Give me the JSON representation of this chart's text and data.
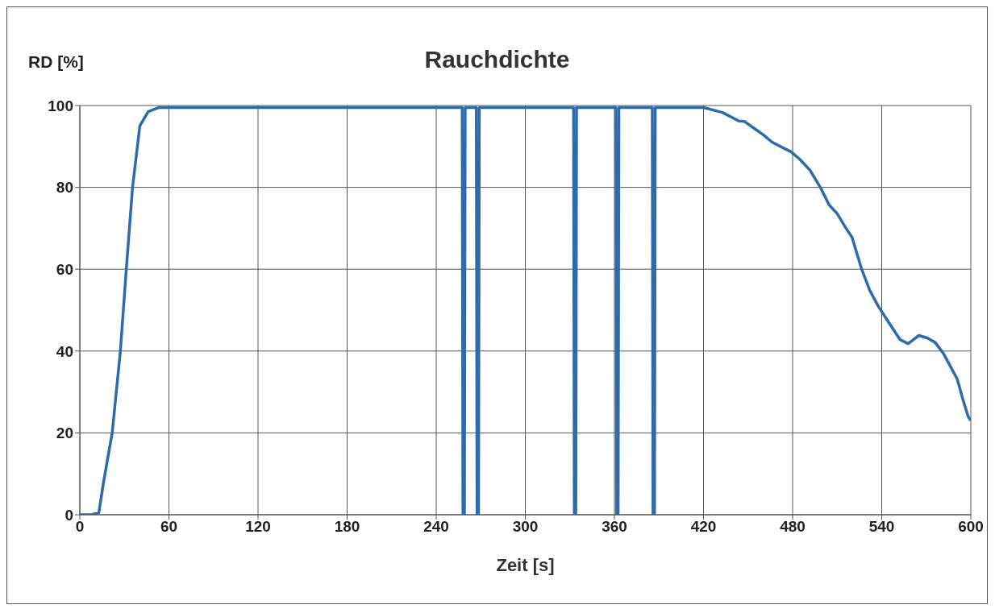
{
  "chart_data": {
    "type": "line",
    "title": "Rauchdichte",
    "xlabel": "Zeit [s]",
    "ylabel": "RD [%]",
    "x": [
      0,
      8,
      12.8,
      16,
      21.8,
      27.3,
      31.3,
      35.5,
      40.4,
      46,
      53,
      100,
      200,
      257.5,
      258,
      259,
      259.5,
      267,
      267.5,
      268.5,
      269,
      332.5,
      333,
      334,
      334.5,
      361,
      361.5,
      362.5,
      363,
      385.5,
      386,
      387,
      387.5,
      420,
      432.8,
      443.8,
      447.7,
      455,
      460.5,
      466,
      473.4,
      478.9,
      484.4,
      491.7,
      499,
      504.6,
      510,
      515.6,
      520,
      526.6,
      532,
      537.6,
      544.9,
      552.3,
      557.8,
      565,
      570.6,
      576,
      581.6,
      590.8,
      594.5,
      598.2,
      600
    ],
    "series": [
      {
        "color": "#2e6bad",
        "values": [
          0,
          0,
          0.5,
          8,
          20,
          40,
          60,
          80,
          95,
          98.5,
          99.5,
          99.5,
          99.5,
          99.5,
          0,
          0,
          99.5,
          99.5,
          0,
          0,
          99.5,
          99.5,
          0,
          0,
          99.5,
          99.5,
          0,
          0,
          99.5,
          99.5,
          0,
          0,
          99.5,
          99.5,
          98.3,
          96.2,
          96.1,
          94.2,
          92.8,
          91.1,
          89.7,
          88.7,
          87,
          84.2,
          79.8,
          75.7,
          73.6,
          70.2,
          67.8,
          59.9,
          54.8,
          51,
          46.9,
          42.8,
          41.8,
          43.8,
          43.2,
          42.1,
          39.4,
          33.2,
          28.4,
          24,
          23
        ]
      }
    ],
    "xlim": [
      0,
      600
    ],
    "xticks": [
      0,
      60,
      120,
      180,
      240,
      300,
      360,
      420,
      480,
      540,
      600
    ],
    "ylim": [
      0,
      100
    ],
    "yticks": [
      0,
      20,
      40,
      60,
      80,
      100
    ],
    "grid": true,
    "marker": "none",
    "line_style": "solid"
  }
}
